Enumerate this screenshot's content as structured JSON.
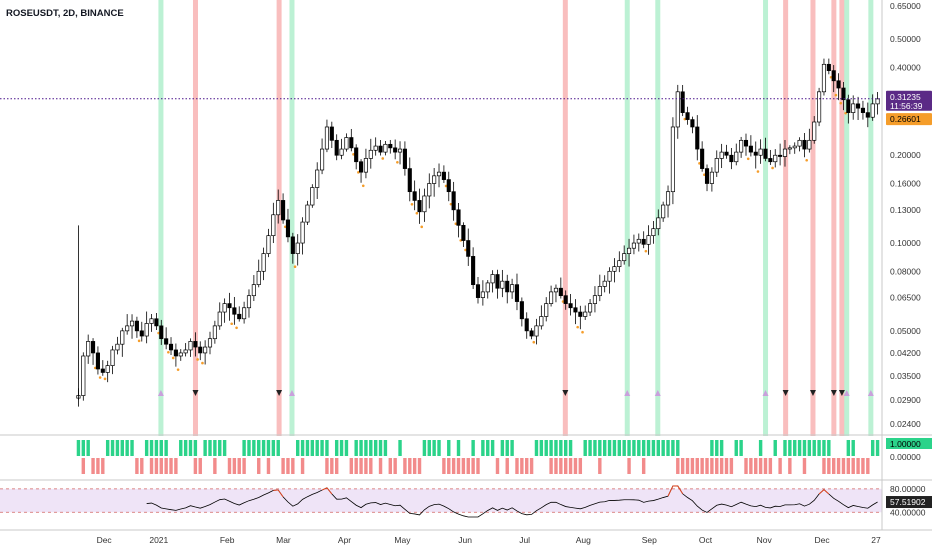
{
  "header": {
    "symbol_title": "ROSEUSDT, 2D, BINANCE"
  },
  "colors": {
    "bull_body": "#ffffff",
    "bear_body": "#000000",
    "wick": "#000000",
    "price_line": "#4a148c",
    "band_red": "#f7a8a8",
    "band_green": "#a6ecc6",
    "hist_green": "#2bd38a",
    "hist_red": "#f28b8b",
    "dot": "#f59d2a",
    "rsi_line": "#000000",
    "rsi_over": "#e0451f",
    "rsi_bg": "#efe4f7",
    "last_price_bg": "#5b2a86",
    "marker_bg": "#f59d2a"
  },
  "price_axis": {
    "scale": "log",
    "ticks": [
      "0.65000",
      "0.50000",
      "0.40000",
      "0.30000",
      "0.20000",
      "0.16000",
      "0.13000",
      "0.10000",
      "0.08000",
      "0.06500",
      "0.05000",
      "0.04200",
      "0.03500",
      "0.02900",
      "0.02400"
    ],
    "last_price": "0.31235",
    "countdown": "11:56:39",
    "marker_value": "0.26601"
  },
  "indicator": {
    "upper_label": "1.00000",
    "lower_label": "0.00000"
  },
  "rsi": {
    "value_label": "57.51902",
    "upper_level": "80.00000",
    "lower_level": "40.00000"
  },
  "time_axis": {
    "labels": [
      "Dec",
      "2021",
      "Feb",
      "Mar",
      "Apr",
      "May",
      "Jun",
      "Jul",
      "Aug",
      "Sep",
      "Oct",
      "Nov",
      "Dec",
      "27"
    ]
  },
  "chart_data": {
    "type": "candlestick",
    "title": "ROSEUSDT, 2D, BINANCE",
    "y_scale": "log",
    "ylim": [
      0.0225,
      0.66
    ],
    "grid": false,
    "last_price": 0.31235,
    "closes": [
      0.03,
      0.041,
      0.046,
      0.042,
      0.037,
      0.036,
      0.038,
      0.043,
      0.045,
      0.05,
      0.052,
      0.054,
      0.05,
      0.048,
      0.053,
      0.055,
      0.052,
      0.047,
      0.045,
      0.043,
      0.041,
      0.042,
      0.043,
      0.046,
      0.044,
      0.042,
      0.044,
      0.047,
      0.052,
      0.058,
      0.062,
      0.06,
      0.057,
      0.055,
      0.06,
      0.066,
      0.072,
      0.08,
      0.092,
      0.106,
      0.125,
      0.14,
      0.12,
      0.105,
      0.092,
      0.1,
      0.118,
      0.135,
      0.155,
      0.178,
      0.21,
      0.25,
      0.225,
      0.2,
      0.21,
      0.23,
      0.212,
      0.19,
      0.175,
      0.195,
      0.208,
      0.215,
      0.205,
      0.218,
      0.212,
      0.205,
      0.21,
      0.18,
      0.15,
      0.14,
      0.128,
      0.145,
      0.16,
      0.17,
      0.175,
      0.165,
      0.15,
      0.13,
      0.115,
      0.102,
      0.09,
      0.072,
      0.065,
      0.068,
      0.073,
      0.078,
      0.07,
      0.074,
      0.068,
      0.072,
      0.063,
      0.055,
      0.05,
      0.048,
      0.052,
      0.056,
      0.062,
      0.068,
      0.07,
      0.066,
      0.062,
      0.06,
      0.058,
      0.056,
      0.058,
      0.062,
      0.066,
      0.071,
      0.074,
      0.08,
      0.083,
      0.087,
      0.092,
      0.096,
      0.1,
      0.103,
      0.099,
      0.106,
      0.112,
      0.122,
      0.135,
      0.15,
      0.25,
      0.33,
      0.28,
      0.265,
      0.25,
      0.21,
      0.18,
      0.16,
      0.175,
      0.195,
      0.205,
      0.2,
      0.19,
      0.205,
      0.225,
      0.215,
      0.205,
      0.2,
      0.21,
      0.195,
      0.19,
      0.2,
      0.198,
      0.21,
      0.212,
      0.215,
      0.225,
      0.21,
      0.225,
      0.26,
      0.33,
      0.41,
      0.39,
      0.36,
      0.34,
      0.31,
      0.28,
      0.3,
      0.29,
      0.28,
      0.27,
      0.3,
      0.312
    ],
    "markers": {
      "red_bands": [
        0.148,
        0.252,
        0.608,
        0.882,
        0.916,
        0.942,
        0.952
      ],
      "green_bands": [
        0.105,
        0.268,
        0.685,
        0.723,
        0.857,
        0.958,
        0.988
      ]
    },
    "indicator_binary": "1.00000 / 0.00000",
    "rsi_levels": [
      80,
      40
    ],
    "rsi_last": 57.51902
  }
}
